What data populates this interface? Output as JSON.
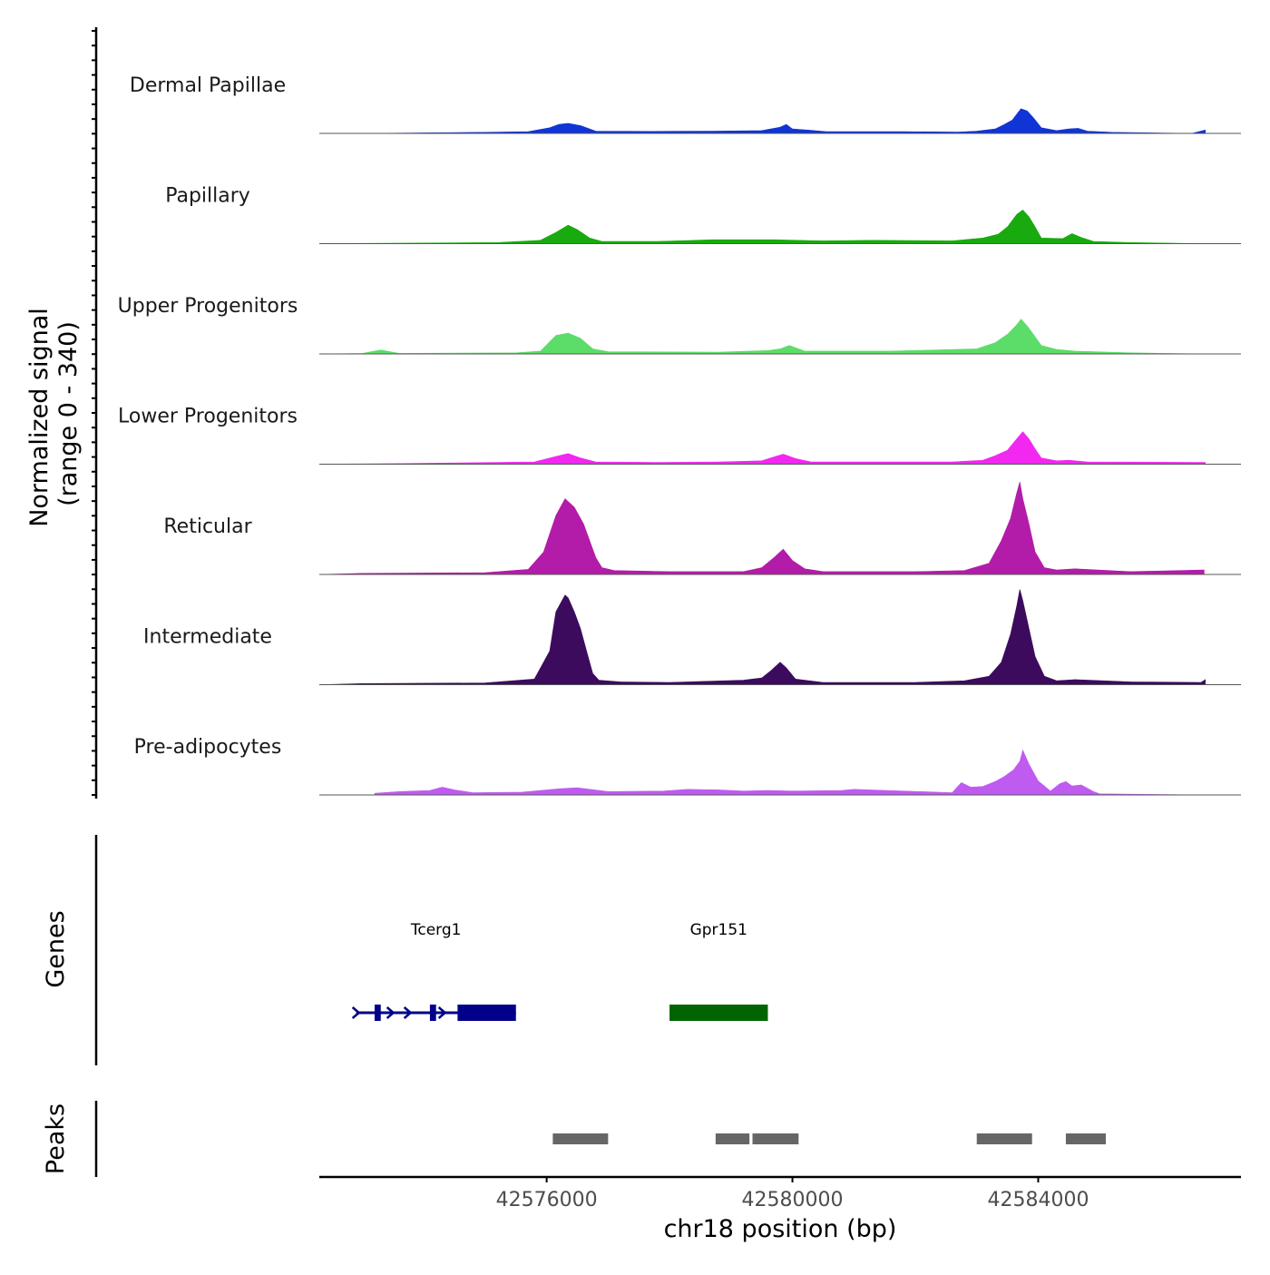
{
  "chart_data": {
    "type": "area",
    "title": "",
    "xlabel": "chr18 position (bp)",
    "ylabel": "Normalized signal",
    "ylabel_range": "(range 0 - 340)",
    "yrange": [
      0,
      340
    ],
    "xlim": [
      42572300,
      42587300
    ],
    "x_ticks": [
      42576000,
      42580000,
      42584000
    ],
    "x_tick_labels": [
      "42576000",
      "42580000",
      "42584000"
    ],
    "baseline_color": "#555555",
    "tracks": [
      {
        "name": "Dermal Papillae",
        "color": "#1034d6",
        "x": [
          42573000,
          42575000,
          42575700,
          42576050,
          42576200,
          42576350,
          42576550,
          42576800,
          42577700,
          42578700,
          42579500,
          42579800,
          42579900,
          42580000,
          42580250,
          42580550,
          42581800,
          42582700,
          42583000,
          42583300,
          42583450,
          42583580,
          42583720,
          42583820,
          42583920,
          42584050,
          42584300,
          42584500,
          42584650,
          42584800,
          42585200,
          42586500,
          42586720
        ],
        "values": [
          0,
          4,
          6,
          20,
          32,
          36,
          28,
          8,
          7,
          8,
          10,
          22,
          32,
          16,
          12,
          6,
          6,
          5,
          8,
          16,
          32,
          48,
          88,
          80,
          56,
          20,
          10,
          16,
          18,
          8,
          4,
          0,
          12
        ]
      },
      {
        "name": "Papillary",
        "color": "#18aa0e",
        "x": [
          42572300,
          42573800,
          42575200,
          42575900,
          42576150,
          42576350,
          42576500,
          42576700,
          42576900,
          42577800,
          42578700,
          42579700,
          42580500,
          42581300,
          42582600,
          42583100,
          42583350,
          42583500,
          42583650,
          42583750,
          42583850,
          42583950,
          42584050,
          42584400,
          42584550,
          42584700,
          42584900,
          42585500,
          42586720
        ],
        "values": [
          0,
          2,
          4,
          12,
          40,
          66,
          50,
          20,
          8,
          8,
          14,
          14,
          10,
          12,
          10,
          20,
          34,
          60,
          104,
          120,
          96,
          60,
          20,
          18,
          36,
          22,
          8,
          4,
          0
        ]
      },
      {
        "name": "Upper Progenitors",
        "color": "#5cdd69",
        "x": [
          42572300,
          42573000,
          42573300,
          42573600,
          42575500,
          42575900,
          42576150,
          42576350,
          42576550,
          42576750,
          42577000,
          42578800,
          42579600,
          42579800,
          42579950,
          42580200,
          42581600,
          42583000,
          42583300,
          42583500,
          42583650,
          42583720,
          42583820,
          42583920,
          42584050,
          42584300,
          42584600,
          42585500,
          42586720
        ],
        "values": [
          0,
          2,
          14,
          2,
          4,
          10,
          66,
          74,
          56,
          18,
          8,
          6,
          12,
          18,
          30,
          10,
          10,
          18,
          40,
          70,
          104,
          124,
          100,
          70,
          30,
          16,
          10,
          4,
          0
        ]
      },
      {
        "name": "Lower Progenitors",
        "color": "#f227f0",
        "x": [
          42572300,
          42573500,
          42575200,
          42575800,
          42576200,
          42576350,
          42576550,
          42576800,
          42577800,
          42578800,
          42579500,
          42579700,
          42579850,
          42580050,
          42580300,
          42581200,
          42582600,
          42583100,
          42583300,
          42583500,
          42583650,
          42583750,
          42583850,
          42583950,
          42584050,
          42584300,
          42584500,
          42584800,
          42586720
        ],
        "values": [
          0,
          2,
          6,
          8,
          30,
          38,
          22,
          8,
          6,
          8,
          12,
          26,
          36,
          20,
          8,
          8,
          8,
          14,
          30,
          50,
          90,
          116,
          90,
          54,
          22,
          12,
          14,
          8,
          6
        ]
      },
      {
        "name": "Reticular",
        "color": "#b21ca8",
        "x": [
          42572300,
          42573000,
          42575000,
          42575700,
          42575950,
          42576150,
          42576300,
          42576450,
          42576600,
          42576800,
          42576900,
          42577100,
          42578000,
          42579200,
          42579500,
          42579700,
          42579850,
          42580000,
          42580200,
          42580500,
          42582000,
          42582800,
          42583200,
          42583400,
          42583550,
          42583650,
          42583700,
          42583750,
          42583850,
          42583950,
          42584100,
          42584300,
          42584600,
          42585500,
          42586700
        ],
        "values": [
          0,
          4,
          6,
          18,
          80,
          210,
          270,
          240,
          180,
          60,
          24,
          14,
          10,
          10,
          24,
          60,
          90,
          50,
          20,
          10,
          10,
          14,
          40,
          120,
          200,
          290,
          330,
          270,
          180,
          80,
          24,
          16,
          20,
          10,
          16
        ]
      },
      {
        "name": "Intermediate",
        "color": "#3c0b5e",
        "x": [
          42572300,
          42573000,
          42575000,
          42575800,
          42576050,
          42576150,
          42576250,
          42576300,
          42576350,
          42576450,
          42576550,
          42576650,
          42576750,
          42576850,
          42577200,
          42578000,
          42579200,
          42579500,
          42579650,
          42579800,
          42579900,
          42580050,
          42580500,
          42582000,
          42582800,
          42583200,
          42583400,
          42583550,
          42583650,
          42583700,
          42583750,
          42583850,
          42583950,
          42584100,
          42584300,
          42584600,
          42585500,
          42586650,
          42586720
        ],
        "values": [
          0,
          4,
          6,
          20,
          120,
          260,
          300,
          320,
          310,
          260,
          200,
          120,
          40,
          16,
          10,
          8,
          16,
          24,
          50,
          80,
          60,
          20,
          8,
          8,
          14,
          30,
          80,
          180,
          280,
          340,
          300,
          200,
          100,
          30,
          14,
          18,
          10,
          8,
          18
        ]
      },
      {
        "name": "Pre-adipocytes",
        "color": "#c05bf2",
        "x": [
          42573200,
          42573600,
          42574100,
          42574300,
          42574500,
          42574800,
          42575600,
          42576200,
          42576500,
          42577000,
          42577900,
          42578300,
          42578800,
          42579200,
          42579600,
          42580000,
          42580800,
          42581000,
          42582600,
          42582750,
          42582900,
          42583100,
          42583300,
          42583450,
          42583600,
          42583700,
          42583750,
          42583850,
          42584000,
          42584200,
          42584350,
          42584450,
          42584550,
          42584700,
          42584900,
          42585000,
          42586720
        ],
        "values": [
          6,
          12,
          16,
          28,
          18,
          8,
          10,
          22,
          26,
          12,
          14,
          20,
          18,
          14,
          16,
          14,
          16,
          20,
          8,
          44,
          28,
          30,
          48,
          66,
          90,
          120,
          160,
          110,
          50,
          14,
          40,
          48,
          32,
          36,
          12,
          4,
          0
        ]
      }
    ],
    "genes": {
      "label": "Genes",
      "items": [
        {
          "name": "Tcerg1",
          "start": 42572900,
          "end": 42575500,
          "color": "#00008b",
          "strand": "+",
          "exons": [
            [
              42573200,
              42573300
            ],
            [
              42574100,
              42574200
            ],
            [
              42574550,
              42575500
            ]
          ]
        },
        {
          "name": "Gpr151",
          "start": 42578000,
          "end": 42579600,
          "color": "#006400",
          "strand": "+",
          "exons": [
            [
              42578000,
              42579600
            ]
          ]
        }
      ]
    },
    "peaks": {
      "label": "Peaks",
      "color": "#666666",
      "intervals": [
        [
          42576100,
          42577000
        ],
        [
          42578750,
          42579300
        ],
        [
          42579350,
          42580100
        ],
        [
          42583000,
          42583900
        ],
        [
          42584450,
          42585100
        ]
      ]
    }
  }
}
